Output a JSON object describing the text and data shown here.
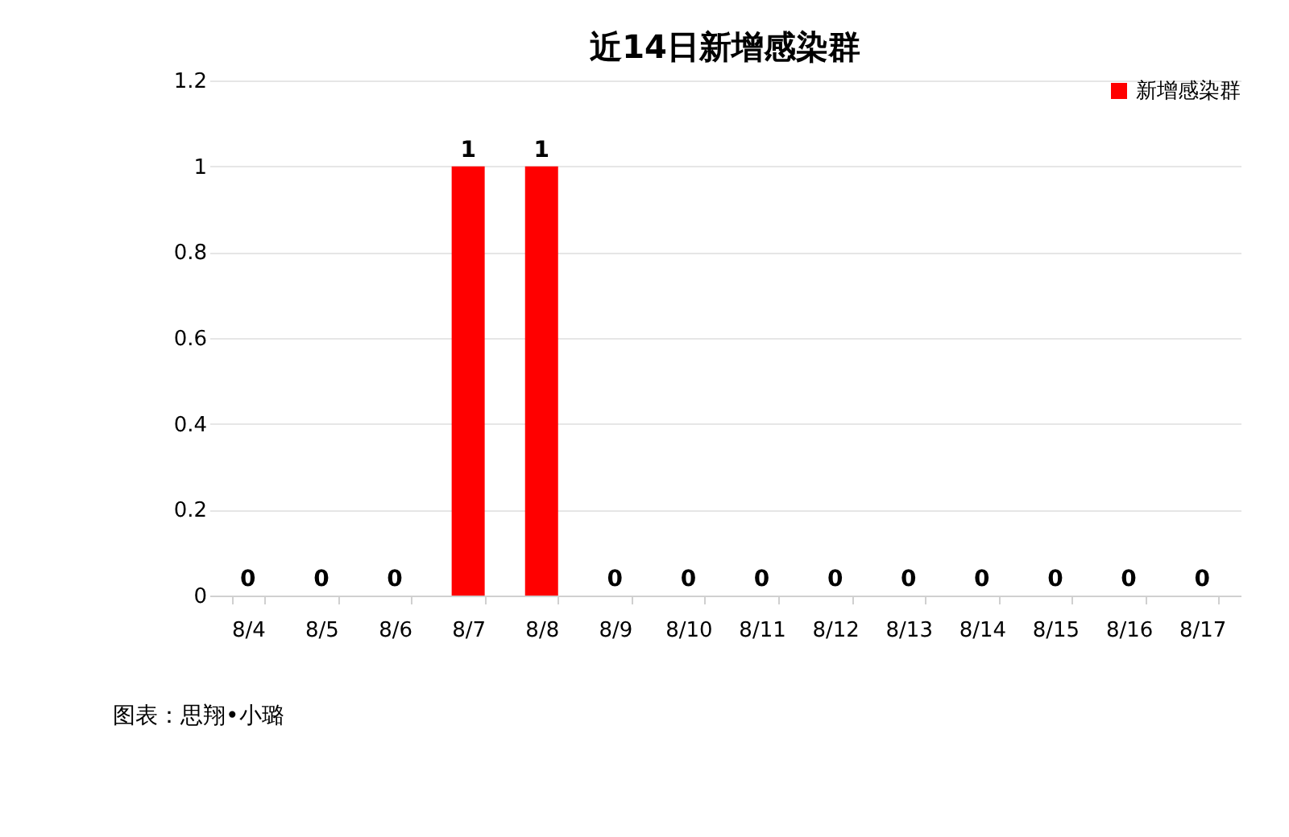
{
  "chart_data": {
    "type": "bar",
    "title": "近14日新增感染群",
    "categories": [
      "8/4",
      "8/5",
      "8/6",
      "8/7",
      "8/8",
      "8/9",
      "8/10",
      "8/11",
      "8/12",
      "8/13",
      "8/14",
      "8/15",
      "8/16",
      "8/17"
    ],
    "series": [
      {
        "name": "新增感染群",
        "color": "#ff0000",
        "values": [
          0,
          0,
          0,
          1,
          1,
          0,
          0,
          0,
          0,
          0,
          0,
          0,
          0,
          0
        ]
      }
    ],
    "ylim": [
      0,
      1.2
    ],
    "yticks": [
      0,
      0.2,
      0.4,
      0.6,
      0.8,
      1,
      1.2
    ],
    "grid": "y",
    "legend": "top right",
    "data_labels": true,
    "annotations": [
      "图表：思翔•小璐"
    ]
  }
}
